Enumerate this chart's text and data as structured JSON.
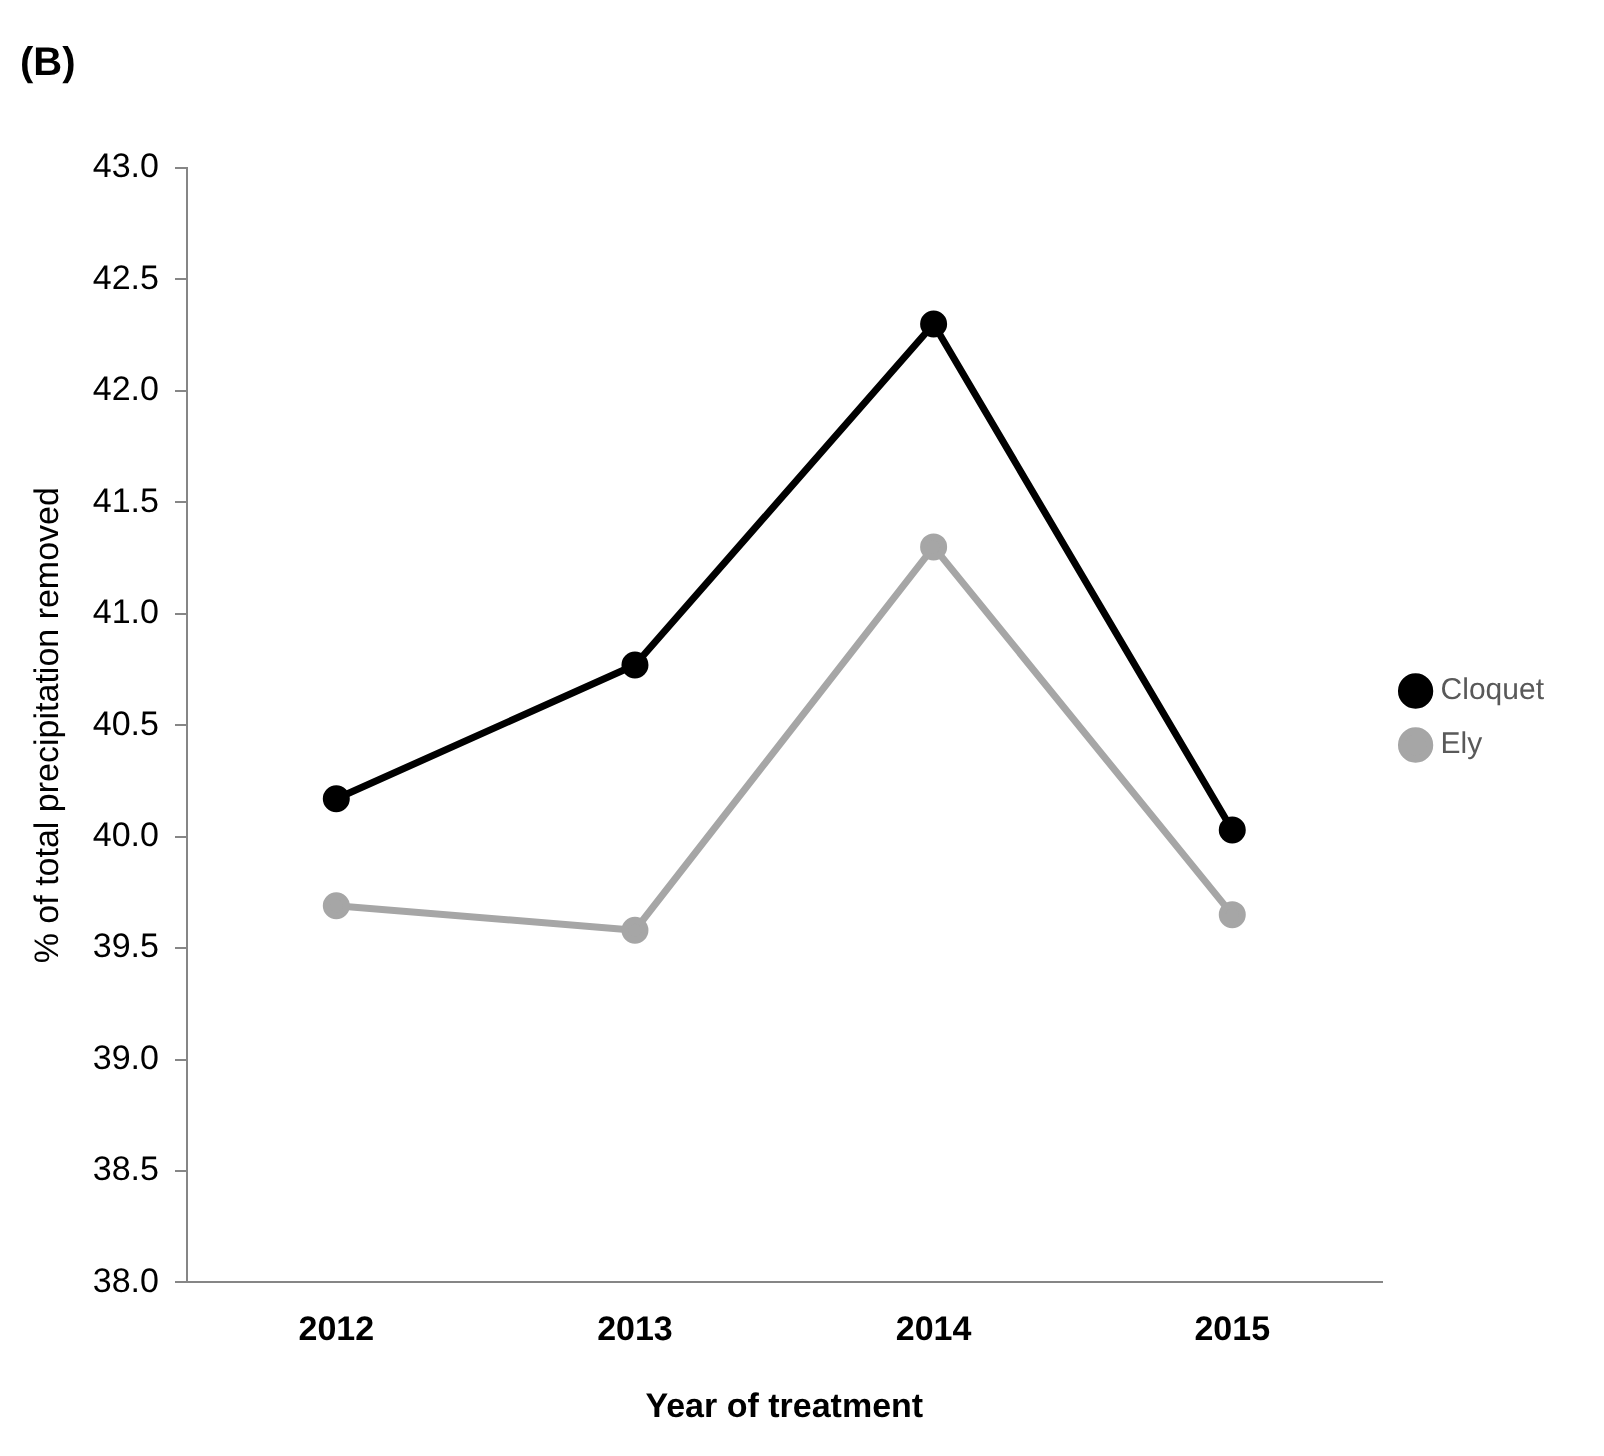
{
  "chart_data": {
    "type": "line",
    "title": "(B)",
    "xlabel": "Year of treatment",
    "ylabel": "% of total precipitation removed",
    "categories": [
      "2012",
      "2013",
      "2014",
      "2015"
    ],
    "series": [
      {
        "name": "Cloquet",
        "color": "#000000",
        "values": [
          40.17,
          40.77,
          42.3,
          40.03
        ]
      },
      {
        "name": "Ely",
        "color": "#a6a6a6",
        "values": [
          39.69,
          39.58,
          41.3,
          39.65
        ]
      }
    ],
    "ylim": [
      38,
      43
    ],
    "yticks": [
      {
        "value": 38,
        "label": "38.0"
      },
      {
        "value": 38.5,
        "label": "38.5"
      },
      {
        "value": 39,
        "label": "39.0"
      },
      {
        "value": 39.5,
        "label": "39.5"
      },
      {
        "value": 40,
        "label": "40.0"
      },
      {
        "value": 40.5,
        "label": "40.5"
      },
      {
        "value": 41,
        "label": "41.0"
      },
      {
        "value": 41.5,
        "label": "41.5"
      },
      {
        "value": 42,
        "label": "42.0"
      },
      {
        "value": 42.5,
        "label": "42.5"
      },
      {
        "value": 43,
        "label": "43.0"
      }
    ],
    "grid": false,
    "legend": "right",
    "marker": "circle",
    "line_style": "solid"
  }
}
